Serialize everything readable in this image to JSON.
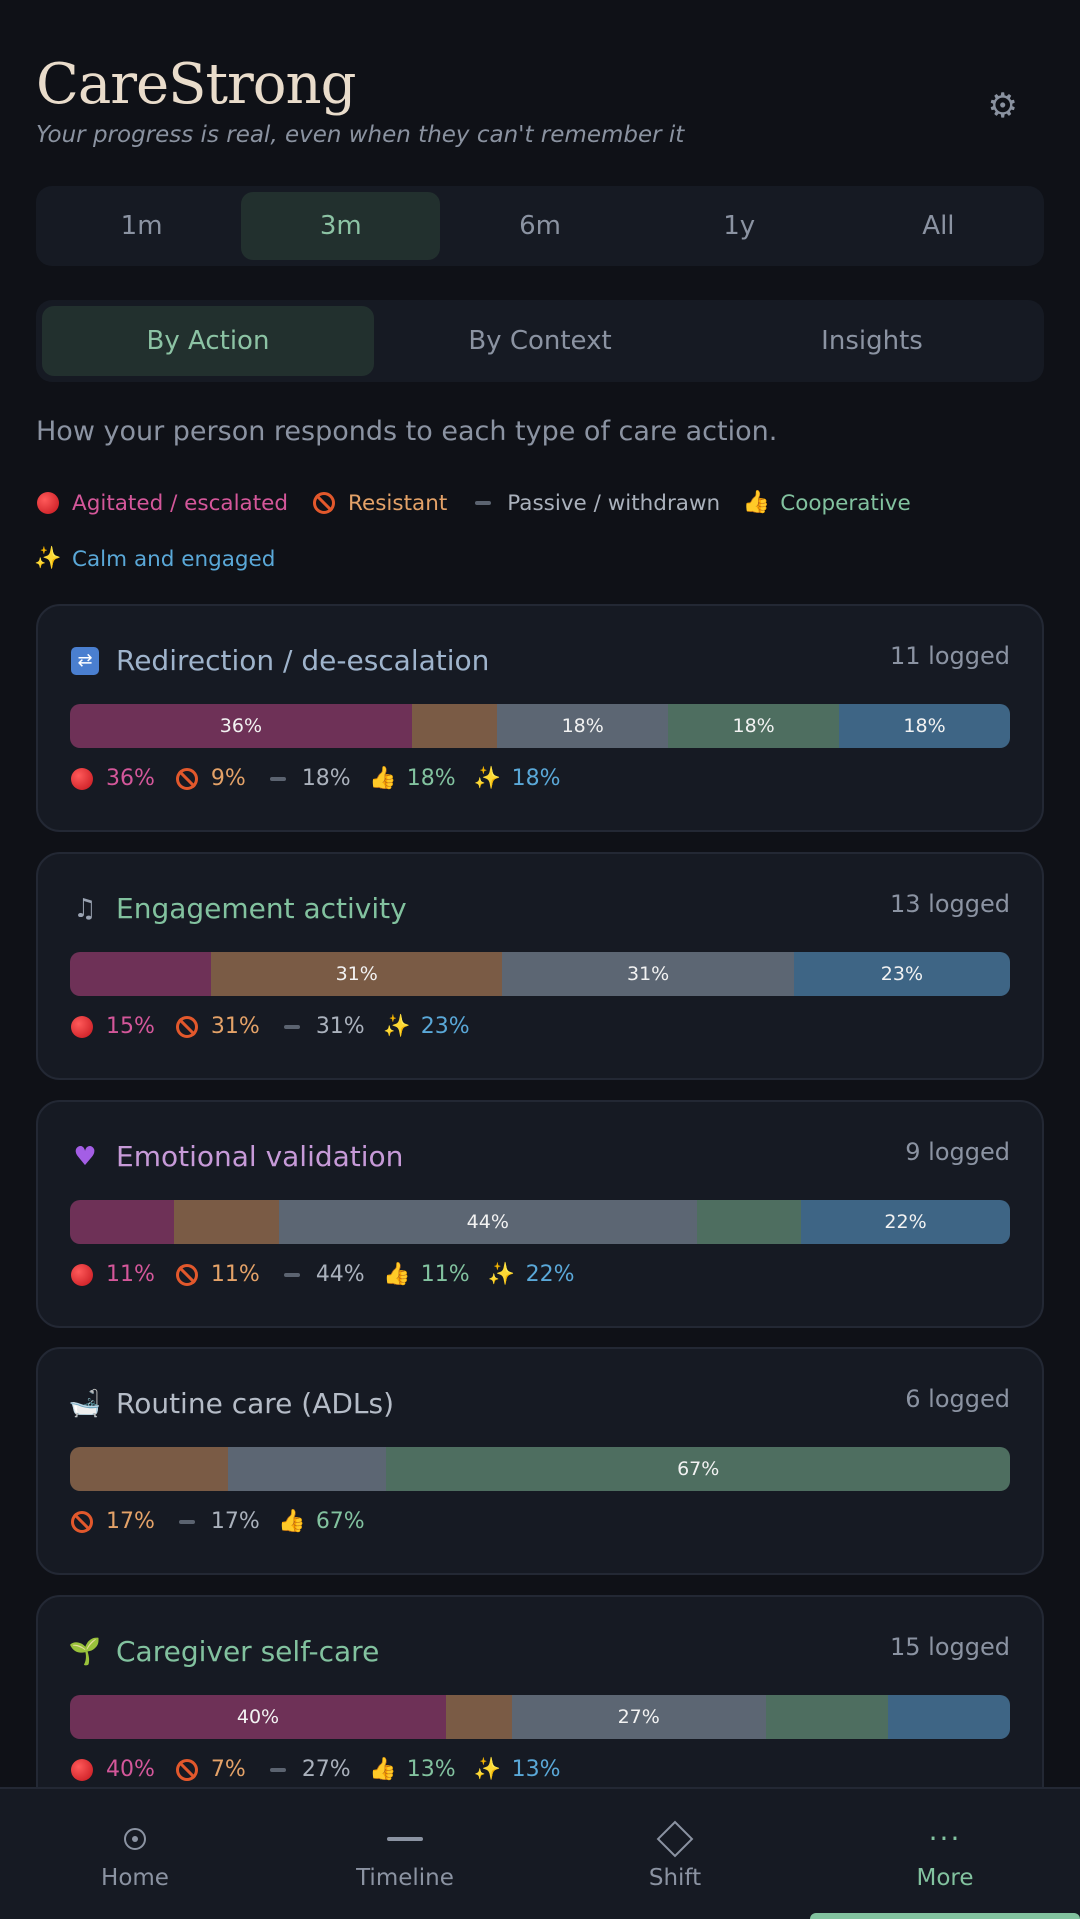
{
  "app": {
    "title": "CareStrong",
    "subtitle": "Your progress is real, even when they can't remember it",
    "settings_icon": "gear-icon"
  },
  "range_tabs": [
    {
      "label": "1m",
      "active": false
    },
    {
      "label": "3m",
      "active": true
    },
    {
      "label": "6m",
      "active": false
    },
    {
      "label": "1y",
      "active": false
    },
    {
      "label": "All",
      "active": false
    }
  ],
  "view_tabs": [
    {
      "label": "By Action",
      "active": true
    },
    {
      "label": "By Context",
      "active": false
    },
    {
      "label": "Insights",
      "active": false
    }
  ],
  "intro": "How your person responds to each type of care action.",
  "legend": [
    {
      "key": "ag",
      "icon": "red-circle-icon",
      "label": "Agitated / escalated",
      "color": "#d4579a"
    },
    {
      "key": "re",
      "icon": "no-entry-icon",
      "label": "Resistant",
      "color": "#e4a268"
    },
    {
      "key": "pa",
      "icon": "dash-icon",
      "label": "Passive / withdrawn",
      "color": "#aab1bc"
    },
    {
      "key": "co",
      "icon": "thumbs-up-icon",
      "label": "Cooperative",
      "color": "#82c29f"
    },
    {
      "key": "ca",
      "icon": "sparkles-icon",
      "label": "Calm and engaged",
      "color": "#5aa8d8"
    }
  ],
  "cards": [
    {
      "icon": "shuffle-icon",
      "title": "Redirection / de-escalation",
      "title_color": "#9fb4cc",
      "count": "11 logged",
      "segments": [
        {
          "key": "ag",
          "pct": 36,
          "label": "36%"
        },
        {
          "key": "re",
          "pct": 9,
          "label": ""
        },
        {
          "key": "pa",
          "pct": 18,
          "label": "18%"
        },
        {
          "key": "co",
          "pct": 18,
          "label": "18%"
        },
        {
          "key": "ca",
          "pct": 18,
          "label": "18%"
        }
      ],
      "stats": [
        {
          "key": "ag",
          "value": "36%"
        },
        {
          "key": "re",
          "value": "9%"
        },
        {
          "key": "pa",
          "value": "18%"
        },
        {
          "key": "co",
          "value": "18%"
        },
        {
          "key": "ca",
          "value": "18%"
        }
      ]
    },
    {
      "icon": "music-note-icon",
      "title": "Engagement activity",
      "title_color": "#82c29f",
      "count": "13 logged",
      "segments": [
        {
          "key": "ag",
          "pct": 15,
          "label": ""
        },
        {
          "key": "re",
          "pct": 31,
          "label": "31%"
        },
        {
          "key": "pa",
          "pct": 31,
          "label": "31%"
        },
        {
          "key": "ca",
          "pct": 23,
          "label": "23%"
        }
      ],
      "stats": [
        {
          "key": "ag",
          "value": "15%"
        },
        {
          "key": "re",
          "value": "31%"
        },
        {
          "key": "pa",
          "value": "31%"
        },
        {
          "key": "ca",
          "value": "23%"
        }
      ]
    },
    {
      "icon": "purple-heart-icon",
      "title": "Emotional validation",
      "title_color": "#c79ad8",
      "count": "9 logged",
      "segments": [
        {
          "key": "ag",
          "pct": 11,
          "label": ""
        },
        {
          "key": "re",
          "pct": 11,
          "label": ""
        },
        {
          "key": "pa",
          "pct": 44,
          "label": "44%"
        },
        {
          "key": "co",
          "pct": 11,
          "label": ""
        },
        {
          "key": "ca",
          "pct": 22,
          "label": "22%"
        }
      ],
      "stats": [
        {
          "key": "ag",
          "value": "11%"
        },
        {
          "key": "re",
          "value": "11%"
        },
        {
          "key": "pa",
          "value": "44%"
        },
        {
          "key": "co",
          "value": "11%"
        },
        {
          "key": "ca",
          "value": "22%"
        }
      ]
    },
    {
      "icon": "bathtub-icon",
      "title": "Routine care (ADLs)",
      "title_color": "#b5bcc7",
      "count": "6 logged",
      "segments": [
        {
          "key": "re",
          "pct": 17,
          "label": ""
        },
        {
          "key": "pa",
          "pct": 17,
          "label": ""
        },
        {
          "key": "co",
          "pct": 67,
          "label": "67%"
        }
      ],
      "stats": [
        {
          "key": "re",
          "value": "17%"
        },
        {
          "key": "pa",
          "value": "17%"
        },
        {
          "key": "co",
          "value": "67%"
        }
      ]
    },
    {
      "icon": "seedling-icon",
      "title": "Caregiver self-care",
      "title_color": "#82c29f",
      "count": "15 logged",
      "segments": [
        {
          "key": "ag",
          "pct": 40,
          "label": "40%"
        },
        {
          "key": "re",
          "pct": 7,
          "label": ""
        },
        {
          "key": "pa",
          "pct": 27,
          "label": "27%"
        },
        {
          "key": "co",
          "pct": 13,
          "label": ""
        },
        {
          "key": "ca",
          "pct": 13,
          "label": ""
        }
      ],
      "stats": [
        {
          "key": "ag",
          "value": "40%"
        },
        {
          "key": "re",
          "value": "7%"
        },
        {
          "key": "pa",
          "value": "27%"
        },
        {
          "key": "co",
          "value": "13%"
        },
        {
          "key": "ca",
          "value": "13%"
        }
      ]
    }
  ],
  "bottom_nav": [
    {
      "icon": "home-icon",
      "label": "Home",
      "active": false
    },
    {
      "icon": "timeline-icon",
      "label": "Timeline",
      "active": false
    },
    {
      "icon": "shift-icon",
      "label": "Shift",
      "active": false
    },
    {
      "icon": "more-icon",
      "label": "More",
      "active": true
    }
  ]
}
